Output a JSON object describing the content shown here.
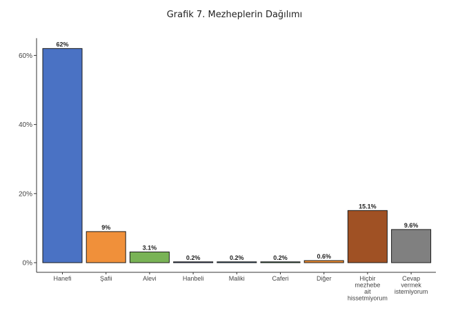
{
  "chart_data": {
    "type": "bar",
    "title": "Grafik 7. Mezheplerin Dağılımı",
    "xlabel": "",
    "ylabel": "",
    "ylim": [
      0,
      65
    ],
    "yticks": [
      0,
      20,
      40,
      60
    ],
    "ytick_labels": [
      "0%",
      "20%",
      "40%",
      "60%"
    ],
    "categories": [
      "Hanefi",
      "Şafii",
      "Alevi",
      "Hanbeli",
      "Maliki",
      "Caferi",
      "Diğer",
      "Hiçbir mezhebe ait hissetmiyorum",
      "Cevap vermek istemiyorum"
    ],
    "category_lines": [
      [
        "Hanefi"
      ],
      [
        "Şafii"
      ],
      [
        "Alevi"
      ],
      [
        "Hanbeli"
      ],
      [
        "Maliki"
      ],
      [
        "Caferi"
      ],
      [
        "Diğer"
      ],
      [
        "Hiçbir",
        "mezhebe",
        "ait",
        "hissetmiyorum"
      ],
      [
        "Cevap",
        "vermek",
        "istemiyorum"
      ]
    ],
    "values": [
      62,
      9,
      3.1,
      0.2,
      0.2,
      0.2,
      0.6,
      15.1,
      9.6
    ],
    "value_labels": [
      "62%",
      "9%",
      "3.1%",
      "0.2%",
      "0.2%",
      "0.2%",
      "0.6%",
      "15.1%",
      "9.6%"
    ],
    "colors": [
      "#4a72c4",
      "#f0903a",
      "#79b356",
      "#3a5fae",
      "#2c7fb8",
      "#2e9a5a",
      "#f08c30",
      "#a05124",
      "#808080"
    ],
    "grid": false,
    "legend": "none"
  }
}
